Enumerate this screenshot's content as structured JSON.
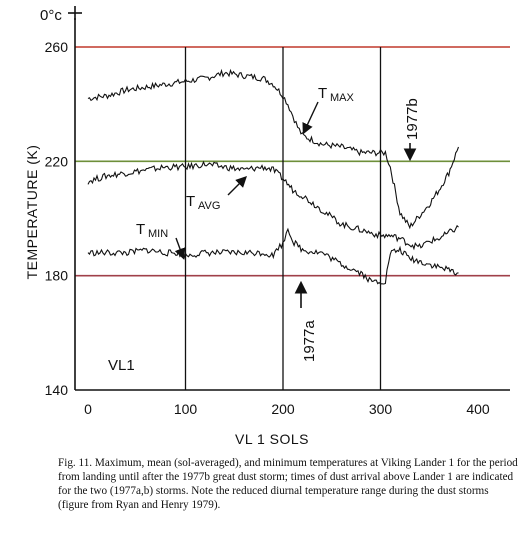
{
  "figure": {
    "corner_label": "0°c",
    "caption": "Fig. 11. Maximum, mean (sol-averaged), and minimum temperatures at Viking Lander 1 for the period from landing until after the 1977b great dust storm; times of dust arrival above Lander 1 are indicated for the two (1977a,b) storms. Note the reduced diurnal temperature range during the dust storms (figure from Ryan and Henry 1979)."
  },
  "chart_data": {
    "type": "line",
    "xlabel": "VL 1 SOLS",
    "ylabel": "TEMPERATURE (K)",
    "xlim": [
      0,
      420
    ],
    "ylim": [
      140,
      260
    ],
    "x_ticks": [
      "0",
      "100",
      "200",
      "300",
      "400"
    ],
    "y_ticks": [
      "140",
      "180",
      "220",
      "260"
    ],
    "vertical_grid_sols": [
      100,
      200,
      300
    ],
    "horizontal_reference_lines": [
      {
        "value": 260,
        "color": "#c0392b"
      },
      {
        "value": 220,
        "color": "#6e8f3a"
      },
      {
        "value": 180,
        "color": "#a0404a"
      }
    ],
    "panel_label": "VL1",
    "series": [
      {
        "name": "TMAX",
        "label_main": "T",
        "label_sub": "MAX",
        "x": [
          0,
          20,
          40,
          60,
          80,
          100,
          120,
          140,
          160,
          180,
          190,
          200,
          205,
          210,
          215,
          220,
          240,
          260,
          280,
          300,
          305,
          310,
          320,
          330,
          340,
          350,
          360,
          370,
          380
        ],
        "y": [
          242,
          243,
          245,
          246,
          247,
          248,
          249,
          251,
          250,
          249,
          247,
          243,
          240,
          236,
          232,
          229,
          226,
          225,
          223,
          223,
          223,
          218,
          202,
          197,
          201,
          205,
          210,
          216,
          225
        ]
      },
      {
        "name": "TAVG",
        "label_main": "T",
        "label_sub": "AVG",
        "x": [
          0,
          20,
          40,
          60,
          80,
          100,
          120,
          140,
          160,
          180,
          190,
          200,
          210,
          220,
          240,
          260,
          280,
          300,
          310,
          320,
          330,
          340,
          350,
          360,
          370,
          380
        ],
        "y": [
          213,
          215,
          216,
          217,
          218,
          218,
          219,
          218,
          217,
          218,
          217,
          214,
          210,
          208,
          203,
          198,
          196,
          194,
          194,
          193,
          191,
          190,
          192,
          193,
          195,
          197
        ]
      },
      {
        "name": "TMIN",
        "label_main": "T",
        "label_sub": "MIN",
        "x": [
          0,
          20,
          40,
          60,
          80,
          90,
          100,
          120,
          140,
          160,
          180,
          190,
          195,
          200,
          205,
          210,
          220,
          240,
          260,
          280,
          290,
          300,
          305,
          310,
          320,
          330,
          340,
          350,
          360,
          370,
          380
        ],
        "y": [
          188,
          188,
          188,
          189,
          188,
          188,
          187,
          188,
          188,
          188,
          188,
          187,
          190,
          191,
          197,
          192,
          189,
          188,
          184,
          181,
          178,
          178,
          178,
          188,
          189,
          186,
          185,
          184,
          183,
          182,
          181
        ]
      }
    ],
    "annotations": [
      {
        "text": "1977a",
        "x": 200,
        "y": 163
      },
      {
        "text": "1977b",
        "x": 306,
        "y": 233
      }
    ]
  }
}
